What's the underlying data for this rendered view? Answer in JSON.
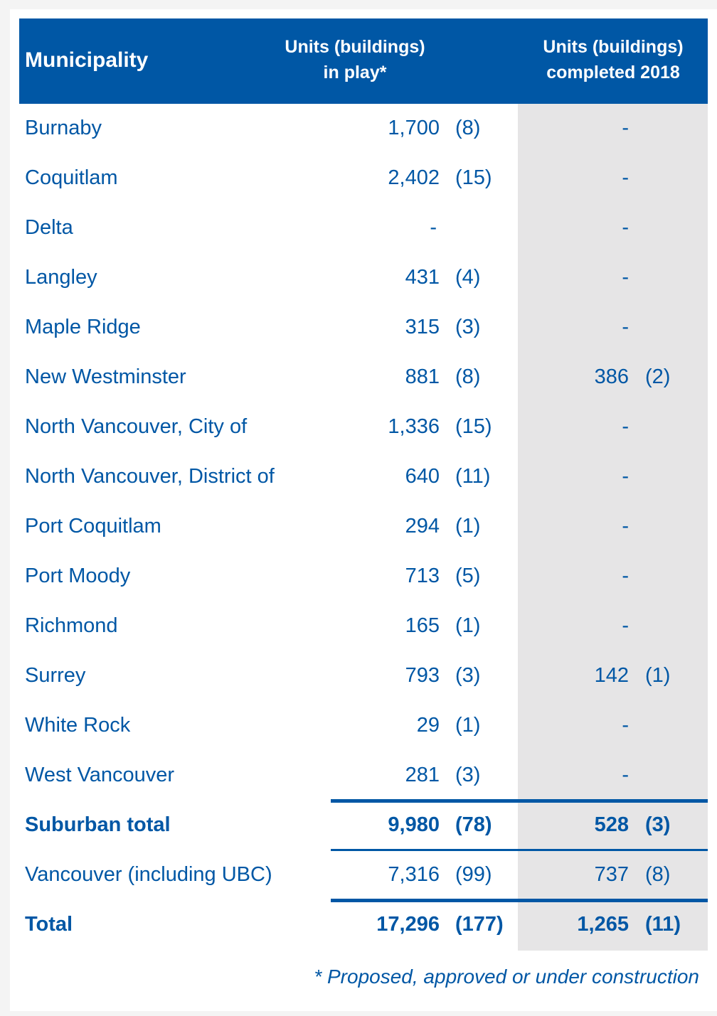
{
  "header": {
    "municipality": "Municipality",
    "col_in_play": [
      "Units (buildings)",
      "in play*"
    ],
    "col_completed": [
      "Units (buildings)",
      "completed 2018"
    ]
  },
  "rows": [
    {
      "name": "Burnaby",
      "units": "1,700",
      "bldg": "(8)",
      "c_units": "-",
      "c_bldg": ""
    },
    {
      "name": "Coquitlam",
      "units": "2,402",
      "bldg": "(15)",
      "c_units": "-",
      "c_bldg": ""
    },
    {
      "name": "Delta",
      "units": "-",
      "bldg": "",
      "c_units": "-",
      "c_bldg": ""
    },
    {
      "name": "Langley",
      "units": "431",
      "bldg": "(4)",
      "c_units": "-",
      "c_bldg": ""
    },
    {
      "name": "Maple Ridge",
      "units": "315",
      "bldg": "(3)",
      "c_units": "-",
      "c_bldg": ""
    },
    {
      "name": "New Westminster",
      "units": "881",
      "bldg": "(8)",
      "c_units": "386",
      "c_bldg": "(2)"
    },
    {
      "name": "North Vancouver, City of",
      "units": "1,336",
      "bldg": "(15)",
      "c_units": "-",
      "c_bldg": ""
    },
    {
      "name": "North Vancouver, District of",
      "units": "640",
      "bldg": "(11)",
      "c_units": "-",
      "c_bldg": ""
    },
    {
      "name": "Port Coquitlam",
      "units": "294",
      "bldg": "(1)",
      "c_units": "-",
      "c_bldg": ""
    },
    {
      "name": "Port Moody",
      "units": "713",
      "bldg": "(5)",
      "c_units": "-",
      "c_bldg": ""
    },
    {
      "name": "Richmond",
      "units": "165",
      "bldg": "(1)",
      "c_units": "-",
      "c_bldg": ""
    },
    {
      "name": "Surrey",
      "units": "793",
      "bldg": "(3)",
      "c_units": "142",
      "c_bldg": "(1)"
    },
    {
      "name": "White Rock",
      "units": "29",
      "bldg": "(1)",
      "c_units": "-",
      "c_bldg": ""
    },
    {
      "name": "West Vancouver",
      "units": "281",
      "bldg": "(3)",
      "c_units": "-",
      "c_bldg": ""
    },
    {
      "name": "Suburban total",
      "units": "9,980",
      "bldg": "(78)",
      "c_units": "528",
      "c_bldg": "(3)",
      "bold": true
    },
    {
      "name": "Vancouver (including UBC)",
      "units": "7,316",
      "bldg": "(99)",
      "c_units": "737",
      "c_bldg": "(8)"
    },
    {
      "name": "Total",
      "units": "17,296",
      "bldg": "(177)",
      "c_units": "1,265",
      "c_bldg": "(11)",
      "bold": true
    }
  ],
  "footnote": "* Proposed, approved or under construction",
  "colors": {
    "brand": "#0057a5",
    "shade": "#e6e5e6"
  }
}
